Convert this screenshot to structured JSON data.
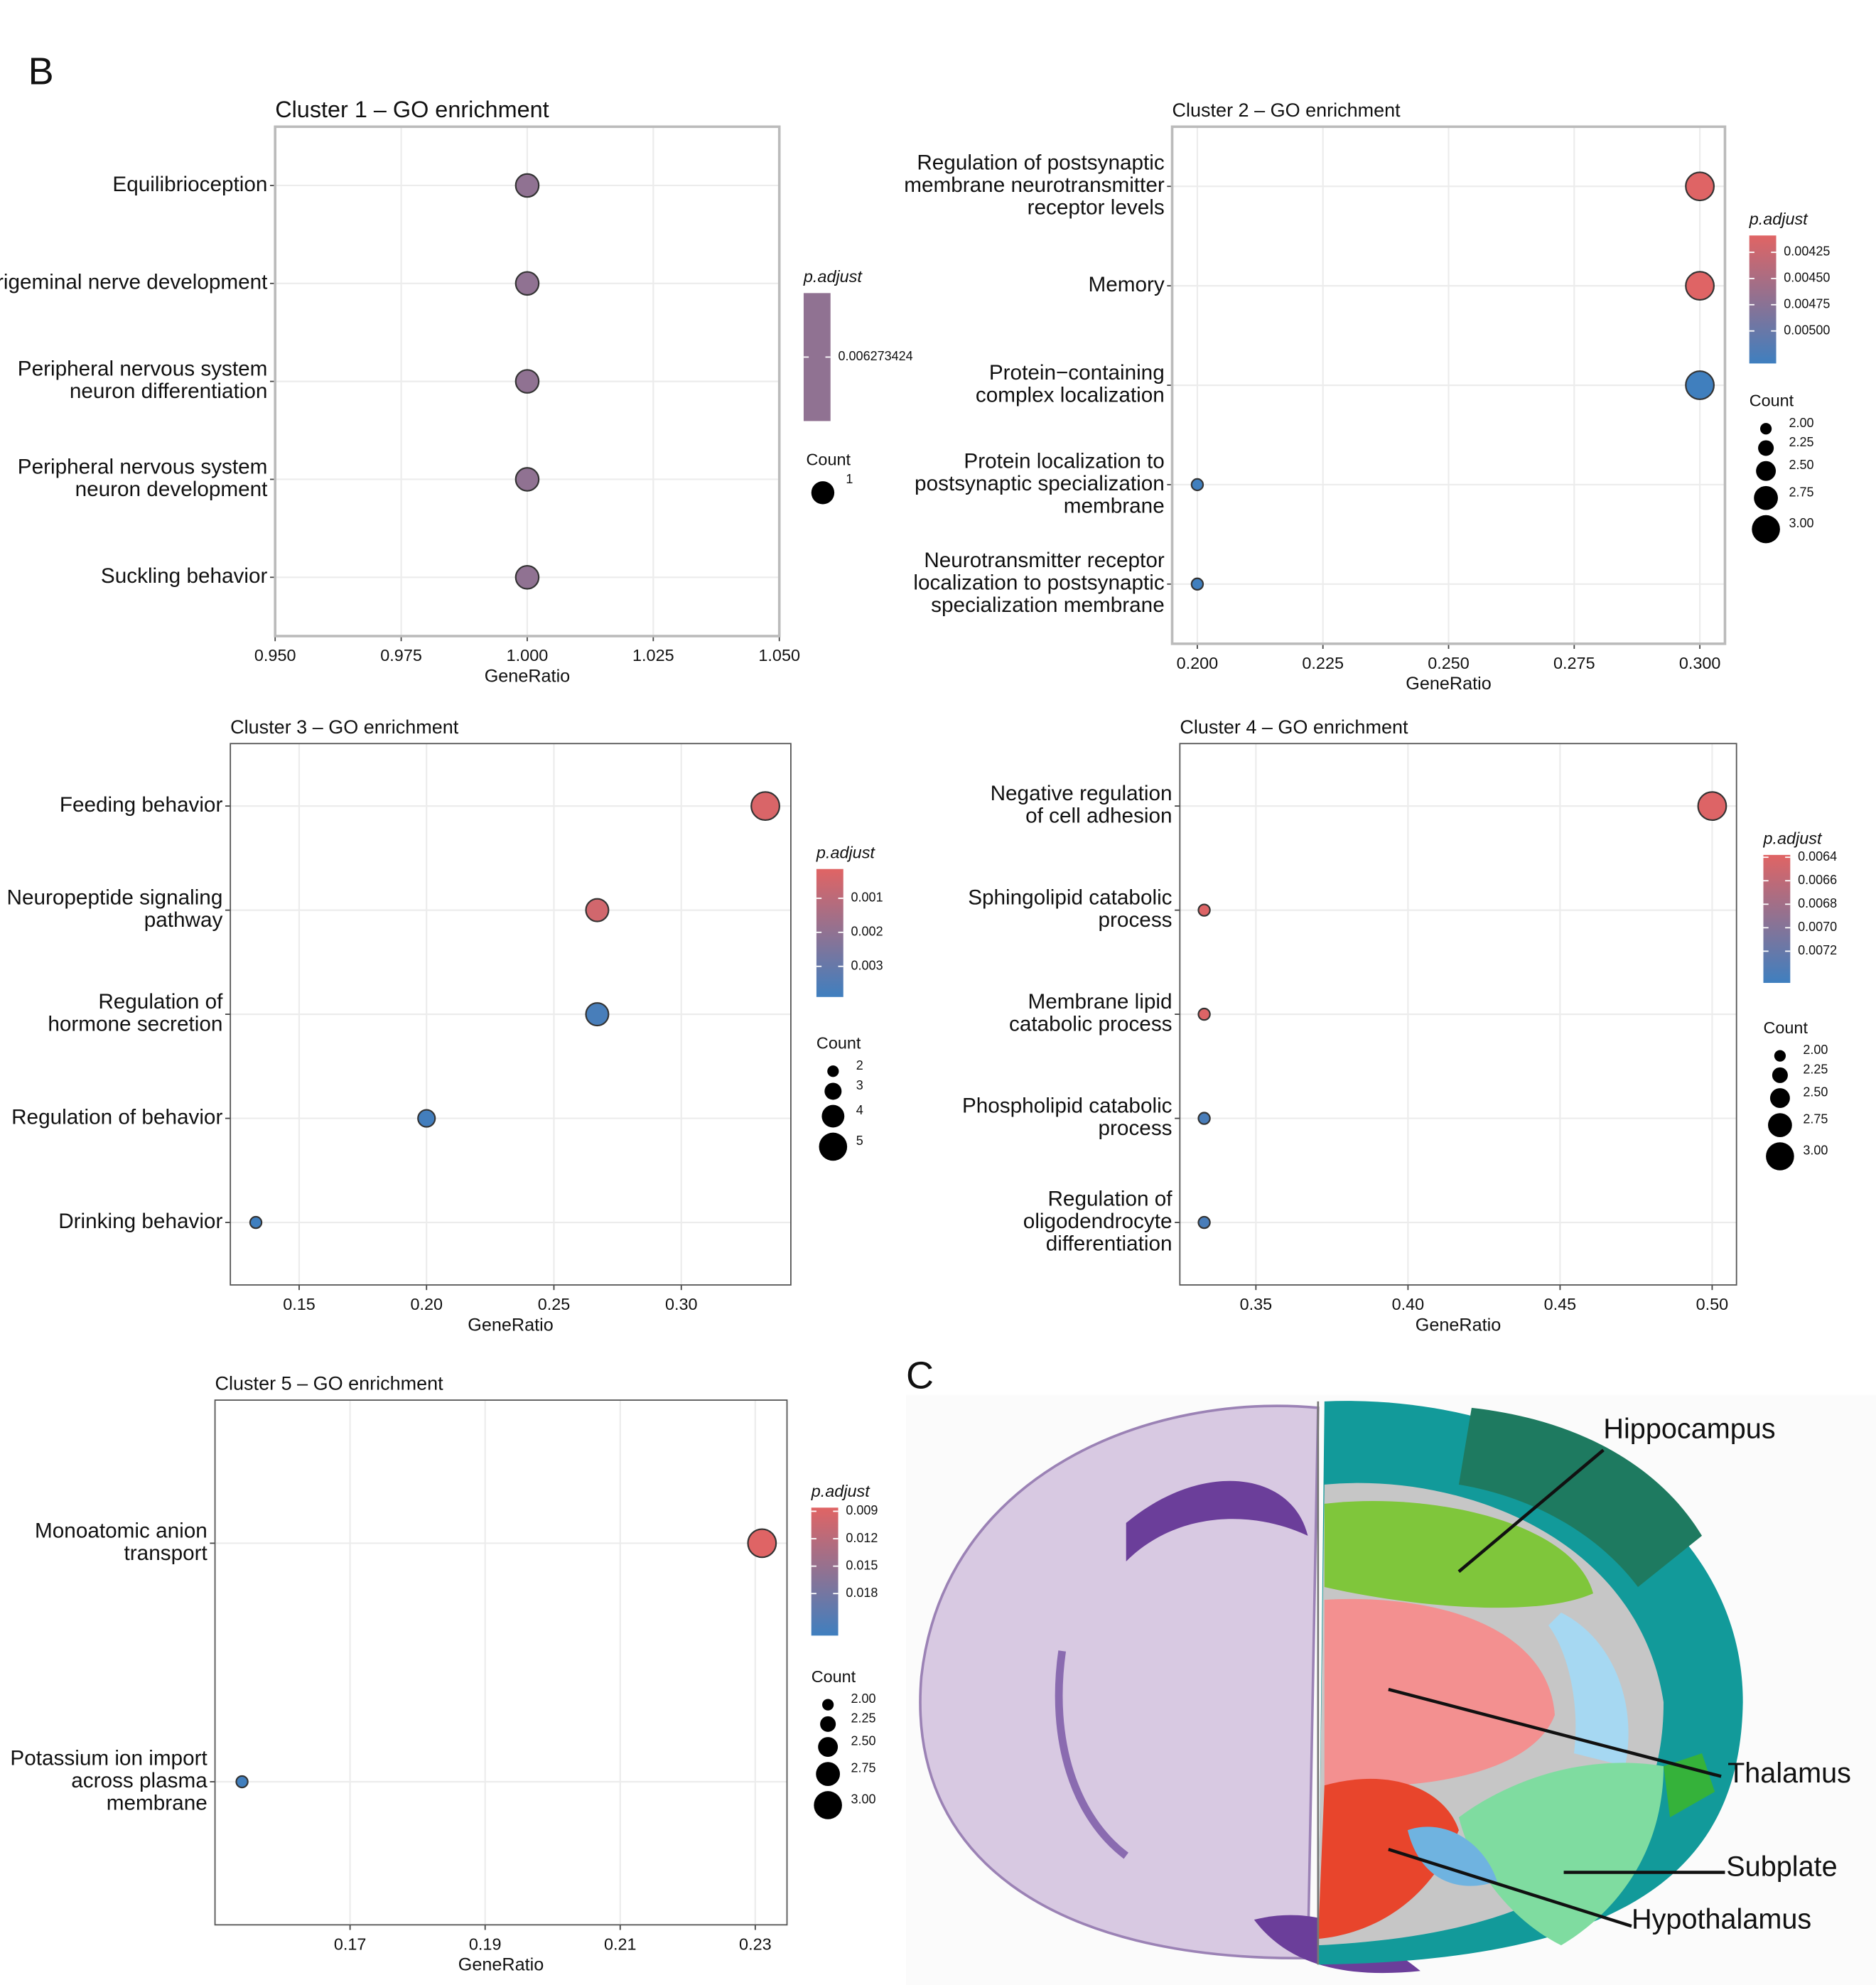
{
  "panel_labels": [
    "B",
    "C"
  ],
  "brain_annotations": [
    "Hippocampus",
    "Thalamus",
    "Subplate",
    "Hypothalamus"
  ],
  "chart_data": [
    {
      "type": "dot",
      "title": "Cluster 1 – GO enrichment",
      "categories": [
        [
          "Equilibrioception"
        ],
        [
          "Trigeminal nerve development"
        ],
        [
          "Peripheral nervous system",
          "neuron differentiation"
        ],
        [
          "Peripheral nervous system",
          "neuron development"
        ],
        [
          "Suckling behavior"
        ]
      ],
      "values": [
        1.0,
        1.0,
        1.0,
        1.0,
        1.0
      ],
      "counts": [
        1,
        1,
        1,
        1,
        1
      ],
      "p_adjust": [
        0.006273424,
        0.006273424,
        0.006273424,
        0.006273424,
        0.006273424
      ],
      "xlabel": "GeneRatio",
      "xlim": [
        0.95,
        1.05
      ],
      "xticks": [
        {
          "value": 0.95,
          "label": "0.950"
        },
        0.975,
        {
          "value": 1.0,
          "label": "1.000"
        },
        1.025,
        {
          "value": 1.05,
          "label": "1.050"
        }
      ],
      "color_legend_title": "p.adjust",
      "color_lim": [
        0.006273424,
        0.006273424
      ],
      "color_ticks": [
        0.006273424
      ],
      "low_color": "#e06464",
      "high_color": "#3f7fbf",
      "size_legend_title": "Count",
      "size_lim": [
        1,
        1
      ],
      "size_ticks": [
        1
      ],
      "grid": true
    },
    {
      "type": "dot",
      "title": "Cluster 2 – GO enrichment",
      "categories": [
        [
          "Regulation of postsynaptic",
          "membrane neurotransmitter",
          "receptor levels"
        ],
        [
          "Memory"
        ],
        [
          "Protein−containing",
          "complex localization"
        ],
        [
          "Protein localization to",
          "postsynaptic specialization",
          "membrane"
        ],
        [
          "Neurotransmitter receptor",
          "localization to postsynaptic",
          "specialization membrane"
        ]
      ],
      "values": [
        0.3,
        0.3,
        0.3,
        0.2,
        0.2
      ],
      "counts": [
        3,
        3,
        3,
        2,
        2
      ],
      "p_adjust": [
        0.0041,
        0.0041,
        0.0053,
        0.0053,
        0.0053
      ],
      "xlabel": "GeneRatio",
      "xlim": [
        0.195,
        0.305
      ],
      "xticks": [
        {
          "value": 0.2,
          "label": "0.200"
        },
        0.225,
        {
          "value": 0.25,
          "label": "0.250"
        },
        0.275,
        {
          "value": 0.3,
          "label": "0.300"
        }
      ],
      "color_legend_title": "p.adjust",
      "color_lim": [
        0.00409,
        0.00531
      ],
      "color_ticks": [
        0.00425,
        {
          "value": 0.0045,
          "label": "0.00450"
        },
        0.00475,
        {
          "value": 0.005,
          "label": "0.00500"
        }
      ],
      "low_color": "#e06464",
      "high_color": "#3f7fbf",
      "size_legend_title": "Count",
      "size_lim": [
        2,
        3
      ],
      "size_ticks": [
        {
          "value": 2,
          "label": "2.00"
        },
        2.25,
        {
          "value": 2.5,
          "label": "2.50"
        },
        2.75,
        {
          "value": 3,
          "label": "3.00"
        }
      ],
      "grid": true
    },
    {
      "type": "dot",
      "title": "Cluster 3 – GO enrichment",
      "categories": [
        [
          "Feeding behavior"
        ],
        [
          "Neuropeptide signaling",
          "pathway"
        ],
        [
          "Regulation of",
          "hormone secretion"
        ],
        [
          "Regulation of behavior"
        ],
        [
          "Drinking behavior"
        ]
      ],
      "values": [
        0.333,
        0.267,
        0.267,
        0.2,
        0.133
      ],
      "counts": [
        5,
        4,
        4,
        3,
        2
      ],
      "p_adjust": [
        0.0003,
        0.0005,
        0.0037,
        0.0038,
        0.0039
      ],
      "xlabel": "GeneRatio",
      "xlim": [
        0.123,
        0.343
      ],
      "xticks": [
        0.15,
        {
          "value": 0.2,
          "label": "0.20"
        },
        0.25,
        {
          "value": 0.3,
          "label": "0.30"
        }
      ],
      "color_legend_title": "p.adjust",
      "color_lim": [
        0.00014,
        0.0039
      ],
      "color_ticks": [
        0.001,
        0.002,
        0.003
      ],
      "low_color": "#e06464",
      "high_color": "#3f7fbf",
      "size_legend_title": "Count",
      "size_lim": [
        2,
        5
      ],
      "size_ticks": [
        2,
        3,
        4,
        5
      ],
      "grid": true
    },
    {
      "type": "dot",
      "title": "Cluster 4 – GO enrichment",
      "categories": [
        [
          "Negative regulation",
          "of cell adhesion"
        ],
        [
          "Sphingolipid catabolic",
          "process"
        ],
        [
          "Membrane lipid",
          "catabolic process"
        ],
        [
          "Phospholipid catabolic",
          "process"
        ],
        [
          "Regulation of",
          "oligodendrocyte",
          "differentiation"
        ]
      ],
      "values": [
        0.5,
        0.333,
        0.333,
        0.333,
        0.333
      ],
      "counts": [
        3,
        2,
        2,
        2,
        2
      ],
      "p_adjust": [
        0.0064,
        0.0064,
        0.0064,
        0.0074,
        0.0074
      ],
      "xlabel": "GeneRatio",
      "xlim": [
        0.325,
        0.508
      ],
      "xticks": [
        0.35,
        {
          "value": 0.4,
          "label": "0.40"
        },
        0.45,
        {
          "value": 0.5,
          "label": "0.50"
        }
      ],
      "color_legend_title": "p.adjust",
      "color_lim": [
        0.00638,
        0.00747
      ],
      "color_ticks": [
        0.0064,
        0.0066,
        0.0068,
        {
          "value": 0.007,
          "label": "0.0070"
        },
        0.0072
      ],
      "low_color": "#e06464",
      "high_color": "#3f7fbf",
      "size_legend_title": "Count",
      "size_lim": [
        2,
        3
      ],
      "size_ticks": [
        {
          "value": 2,
          "label": "2.00"
        },
        2.25,
        {
          "value": 2.5,
          "label": "2.50"
        },
        2.75,
        {
          "value": 3,
          "label": "3.00"
        }
      ],
      "grid": true
    },
    {
      "type": "dot",
      "title": "Cluster 5 – GO enrichment",
      "categories": [
        [
          "Monoatomic anion",
          "transport"
        ],
        [
          "Potassium ion import",
          "across plasma",
          "membrane"
        ]
      ],
      "values": [
        0.231,
        0.154
      ],
      "counts": [
        3,
        2
      ],
      "p_adjust": [
        0.0087,
        0.0224
      ],
      "xlabel": "GeneRatio",
      "xlim": [
        0.15,
        0.2347
      ],
      "xticks": [
        0.17,
        0.19,
        0.21,
        0.23
      ],
      "color_legend_title": "p.adjust",
      "color_lim": [
        0.0086,
        0.0226
      ],
      "color_ticks": [
        0.009,
        0.012,
        0.015,
        0.018
      ],
      "low_color": "#e06464",
      "high_color": "#3f7fbf",
      "size_legend_title": "Count",
      "size_lim": [
        2,
        3
      ],
      "size_ticks": [
        {
          "value": 2,
          "label": "2.00"
        },
        2.25,
        {
          "value": 2.5,
          "label": "2.50"
        },
        2.75,
        {
          "value": 3,
          "label": "3.00"
        }
      ],
      "grid": true
    }
  ]
}
